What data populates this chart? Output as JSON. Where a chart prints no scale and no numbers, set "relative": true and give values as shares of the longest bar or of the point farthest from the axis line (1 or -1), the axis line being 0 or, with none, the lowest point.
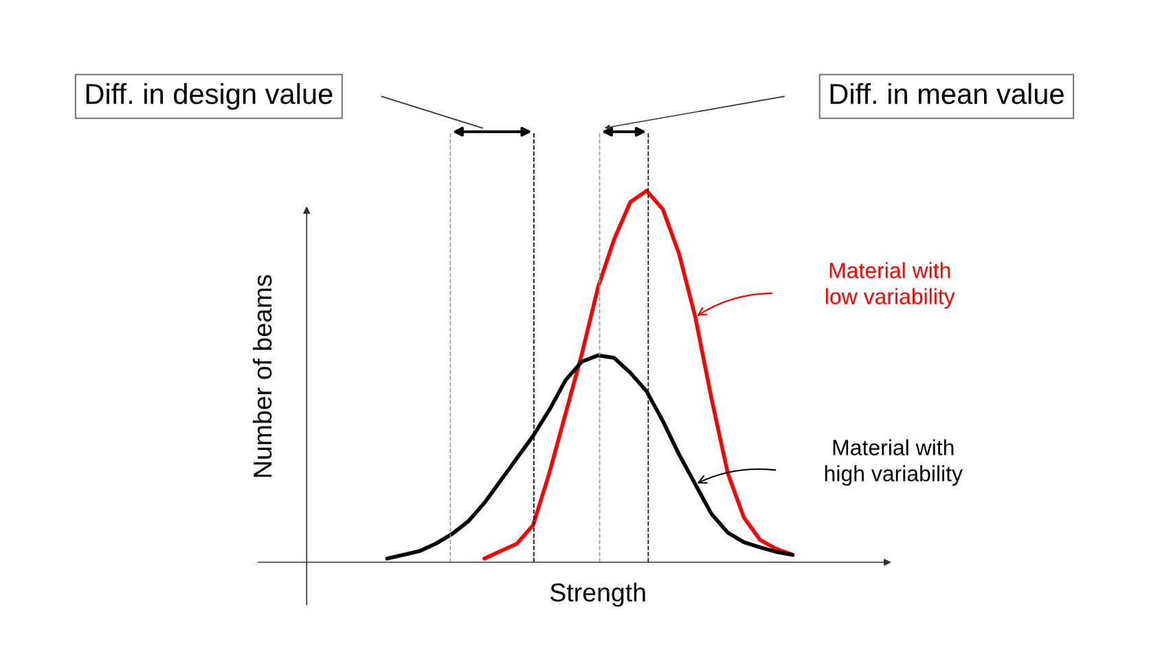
{
  "chart_data": {
    "type": "line",
    "relative": true,
    "xlabel": "Strength",
    "ylabel": "Number of beams",
    "categories": [
      null,
      null,
      null,
      null,
      null,
      null,
      null,
      null,
      null,
      null,
      null,
      null,
      null,
      null,
      null,
      null,
      null,
      null,
      null,
      null,
      null,
      null,
      null,
      null,
      null,
      null
    ],
    "series": [
      {
        "name": "Material with\nlow variability",
        "color": "#ff0000",
        "values": [
          null,
          null,
          null,
          null,
          null,
          null,
          0.01,
          0.03,
          0.05,
          0.1,
          0.24,
          0.4,
          0.56,
          0.74,
          0.87,
          0.97,
          1,
          0.95,
          0.83,
          0.66,
          0.44,
          0.24,
          0.12,
          0.06,
          0.036,
          0.02
        ]
      },
      {
        "name": "Material with\nhigh variability",
        "color": "#000000",
        "values": [
          0.01,
          0.02,
          0.03,
          0.05,
          0.076,
          0.11,
          0.16,
          0.22,
          0.28,
          0.34,
          0.41,
          0.49,
          0.54,
          0.557,
          0.55,
          0.51,
          0.46,
          0.38,
          0.29,
          0.21,
          0.13,
          0.08,
          0.054,
          0.04,
          0.028,
          0.02
        ]
      }
    ],
    "annotations": [
      "Diff. in design value",
      "Diff. in mean value"
    ],
    "grid": "x",
    "tick_labels": false
  }
}
